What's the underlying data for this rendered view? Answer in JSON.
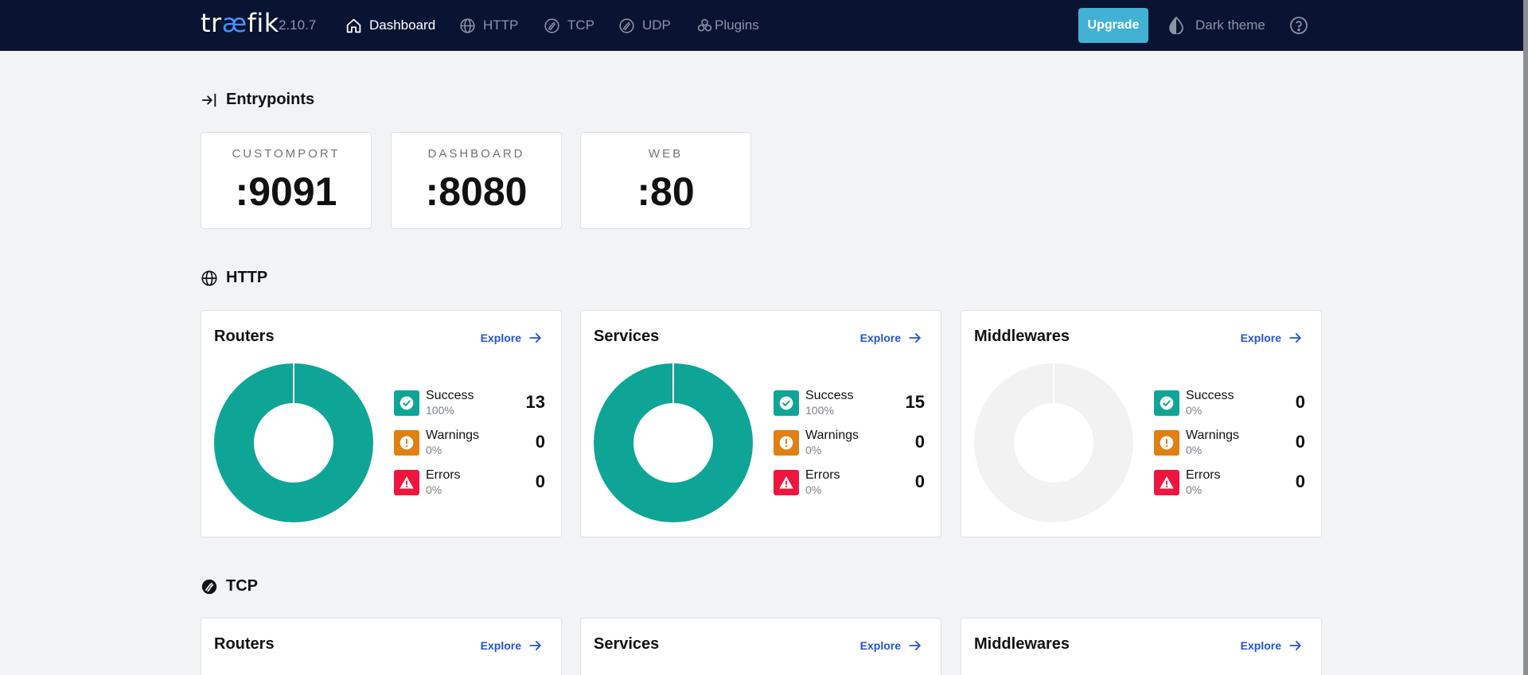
{
  "nav": {
    "logo_pre": "tr",
    "logo_ae": "æ",
    "logo_post": "fik",
    "version": "2.10.7",
    "items": [
      {
        "label": "Dashboard",
        "icon": "home-icon",
        "active": true
      },
      {
        "label": "HTTP",
        "icon": "globe-icon",
        "active": false
      },
      {
        "label": "TCP",
        "icon": "tcp-icon",
        "active": false
      },
      {
        "label": "UDP",
        "icon": "udp-icon",
        "active": false
      },
      {
        "label": "Plugins",
        "icon": "plugins-icon",
        "active": false
      }
    ],
    "upgrade_label": "Upgrade",
    "theme_label": "Dark theme",
    "help_icon": "help-icon"
  },
  "entrypoints": {
    "title": "Entrypoints",
    "items": [
      {
        "name": "CUSTOMPORT",
        "port": ":9091"
      },
      {
        "name": "DASHBOARD",
        "port": ":8080"
      },
      {
        "name": "WEB",
        "port": ":80"
      }
    ]
  },
  "http": {
    "title": "HTTP",
    "cards": [
      {
        "title": "Routers",
        "explore": "Explore",
        "success": {
          "label": "Success",
          "pct": "100%",
          "count": "13"
        },
        "warnings": {
          "label": "Warnings",
          "pct": "0%",
          "count": "0"
        },
        "errors": {
          "label": "Errors",
          "pct": "0%",
          "count": "0"
        },
        "success_fraction": 1.0
      },
      {
        "title": "Services",
        "explore": "Explore",
        "success": {
          "label": "Success",
          "pct": "100%",
          "count": "15"
        },
        "warnings": {
          "label": "Warnings",
          "pct": "0%",
          "count": "0"
        },
        "errors": {
          "label": "Errors",
          "pct": "0%",
          "count": "0"
        },
        "success_fraction": 1.0
      },
      {
        "title": "Middlewares",
        "explore": "Explore",
        "success": {
          "label": "Success",
          "pct": "0%",
          "count": "0"
        },
        "warnings": {
          "label": "Warnings",
          "pct": "0%",
          "count": "0"
        },
        "errors": {
          "label": "Errors",
          "pct": "0%",
          "count": "0"
        },
        "success_fraction": 0.0
      }
    ]
  },
  "tcp": {
    "title": "TCP",
    "cards": [
      {
        "title": "Routers",
        "explore": "Explore"
      },
      {
        "title": "Services",
        "explore": "Explore"
      },
      {
        "title": "Middlewares",
        "explore": "Explore"
      }
    ]
  },
  "colors": {
    "navbar": "#091433",
    "success": "#0fa596",
    "warning": "#e07f12",
    "error": "#f0153f",
    "empty": "#f2f2f2",
    "link": "#2553d6",
    "upgrade": "#42b1d4"
  }
}
